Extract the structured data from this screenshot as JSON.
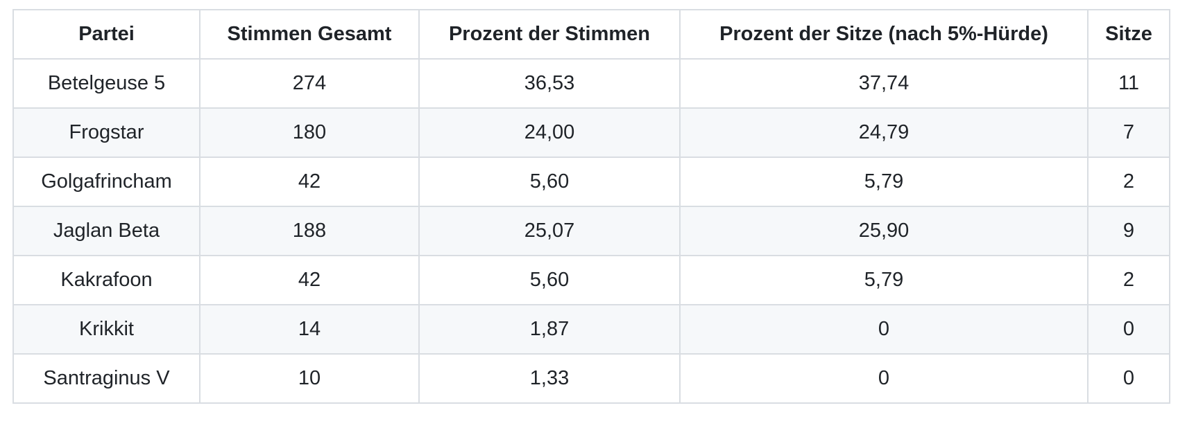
{
  "colors": {
    "text": "#1f2328",
    "border": "#d9dde2",
    "stripe": "#f6f8fa",
    "header_bg": "#ffffff",
    "page_bg": "#ffffff"
  },
  "table": {
    "columns": [
      "Partei",
      "Stimmen Gesamt",
      "Prozent der Stimmen",
      "Prozent der Sitze (nach 5%-Hürde)",
      "Sitze"
    ],
    "rows": [
      {
        "cells": [
          "Betelgeuse 5",
          "274",
          "36,53",
          "37,74",
          "11"
        ]
      },
      {
        "cells": [
          "Frogstar",
          "180",
          "24,00",
          "24,79",
          "7"
        ]
      },
      {
        "cells": [
          "Golgafrincham",
          "42",
          "5,60",
          "5,79",
          "2"
        ]
      },
      {
        "cells": [
          "Jaglan Beta",
          "188",
          "25,07",
          "25,90",
          "9"
        ]
      },
      {
        "cells": [
          "Kakrafoon",
          "42",
          "5,60",
          "5,79",
          "2"
        ]
      },
      {
        "cells": [
          "Krikkit",
          "14",
          "1,87",
          "0",
          "0"
        ]
      },
      {
        "cells": [
          "Santraginus V",
          "10",
          "1,33",
          "0",
          "0"
        ]
      }
    ]
  }
}
